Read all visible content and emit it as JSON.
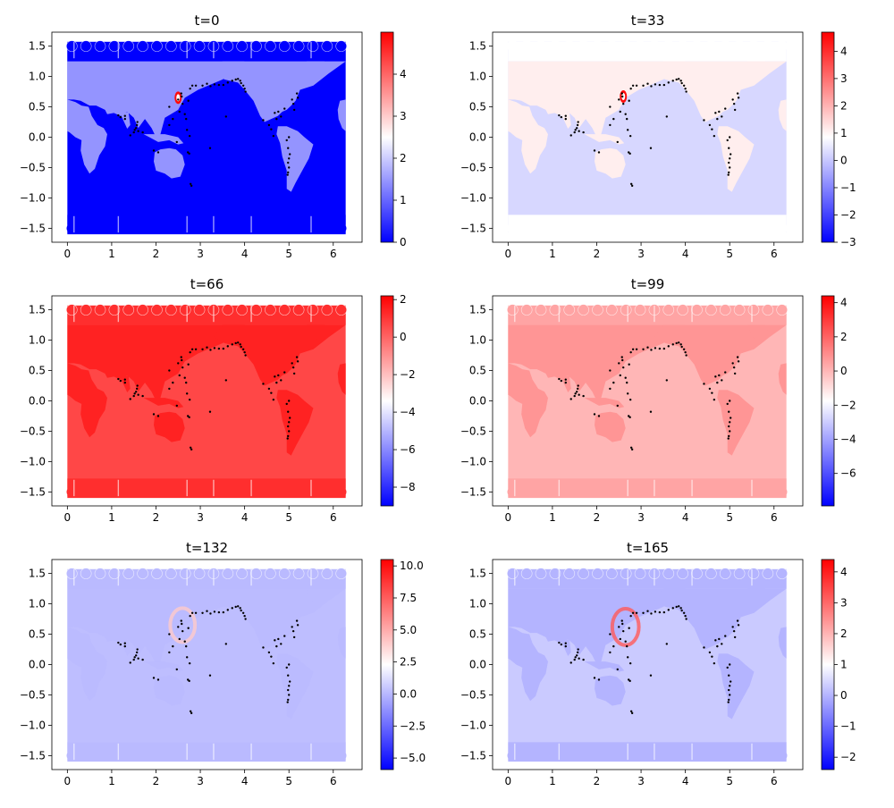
{
  "chart_data": [
    {
      "type": "scatter",
      "title": "t=0",
      "xlabel": "",
      "ylabel": "",
      "x_ticks": [
        "0",
        "1",
        "2",
        "3",
        "4",
        "5",
        "6"
      ],
      "y_ticks": [
        "1.5",
        "1.0",
        "0.5",
        "0.0",
        "−0.5",
        "−1.0",
        "−1.5"
      ],
      "xlim": [
        -0.35,
        6.65
      ],
      "ylim": [
        -1.73,
        1.73
      ],
      "colorbar": {
        "min": 0,
        "max": 5,
        "ticks": [
          "0",
          "1",
          "2",
          "3",
          "4"
        ],
        "cmap": "bwr"
      },
      "field": {
        "ocean": 0.0,
        "land": 1.45,
        "polar": 0.0
      },
      "source": {
        "x": 2.5,
        "y": 0.65,
        "value": 4.9
      },
      "ring": null
    },
    {
      "type": "scatter",
      "title": "t=33",
      "xlabel": "",
      "ylabel": "",
      "x_ticks": [
        "0",
        "1",
        "2",
        "3",
        "4",
        "5",
        "6"
      ],
      "y_ticks": [
        "1.5",
        "1.0",
        "0.5",
        "0.0",
        "−0.5",
        "−1.0",
        "−1.5"
      ],
      "xlim": [
        -0.35,
        6.65
      ],
      "ylim": [
        -1.73,
        1.73
      ],
      "colorbar": {
        "min": -3,
        "max": 4.7,
        "ticks": [
          "−3",
          "−2",
          "−1",
          "0",
          "1",
          "2",
          "3",
          "4"
        ],
        "cmap": "bwr"
      },
      "field": {
        "ocean": 0.25,
        "land": 1.1,
        "polar": 0.85
      },
      "source": {
        "x": 2.6,
        "y": 0.67,
        "value": 4.5
      },
      "ring": null
    },
    {
      "type": "scatter",
      "title": "t=66",
      "xlabel": "",
      "ylabel": "",
      "x_ticks": [
        "0",
        "1",
        "2",
        "3",
        "4",
        "5",
        "6"
      ],
      "y_ticks": [
        "1.5",
        "1.0",
        "0.5",
        "0.0",
        "−0.5",
        "−1.0",
        "−1.5"
      ],
      "xlim": [
        -0.35,
        6.65
      ],
      "ylim": [
        -1.73,
        1.73
      ],
      "colorbar": {
        "min": -9,
        "max": 2.2,
        "ticks": [
          "−8",
          "−6",
          "−4",
          "−2",
          "0",
          "2"
        ],
        "cmap": "bwr"
      },
      "field": {
        "ocean": 0.65,
        "land": 1.45,
        "polar": 1.2
      },
      "source": null,
      "ring": null
    },
    {
      "type": "scatter",
      "title": "t=99",
      "xlabel": "",
      "ylabel": "",
      "x_ticks": [
        "0",
        "1",
        "2",
        "3",
        "4",
        "5",
        "6"
      ],
      "y_ticks": [
        "1.5",
        "1.0",
        "0.5",
        "0.0",
        "−0.5",
        "−1.0",
        "−1.5"
      ],
      "xlim": [
        -0.35,
        6.65
      ],
      "ylim": [
        -1.73,
        1.73
      ],
      "colorbar": {
        "min": -7.9,
        "max": 4.4,
        "ticks": [
          "−6",
          "−4",
          "−2",
          "0",
          "2",
          "4"
        ],
        "cmap": "bwr"
      },
      "field": {
        "ocean": 0.0,
        "land": 0.8,
        "polar": 0.45
      },
      "source": null,
      "ring": null
    },
    {
      "type": "scatter",
      "title": "t=132",
      "xlabel": "",
      "ylabel": "",
      "x_ticks": [
        "0",
        "1",
        "2",
        "3",
        "4",
        "5",
        "6"
      ],
      "y_ticks": [
        "1.5",
        "1.0",
        "0.5",
        "0.0",
        "−0.5",
        "−1.0",
        "−1.5"
      ],
      "xlim": [
        -0.35,
        6.65
      ],
      "ylim": [
        -1.73,
        1.73
      ],
      "colorbar": {
        "min": -5.9,
        "max": 10.5,
        "ticks": [
          "−5.0",
          "−2.5",
          "0.0",
          "2.5",
          "5.0",
          "7.5",
          "10.0"
        ],
        "cmap": "bwr"
      },
      "field": {
        "ocean": 0.2,
        "land": 0.1,
        "polar": 0.08
      },
      "source": null,
      "ring": {
        "x": 2.6,
        "y": 0.65,
        "r": 0.28,
        "value": 4.0
      }
    },
    {
      "type": "scatter",
      "title": "t=165",
      "xlabel": "",
      "ylabel": "",
      "x_ticks": [
        "0",
        "1",
        "2",
        "3",
        "4",
        "5",
        "6"
      ],
      "y_ticks": [
        "1.5",
        "1.0",
        "0.5",
        "0.0",
        "−0.5",
        "−1.0",
        "−1.5"
      ],
      "xlim": [
        -0.35,
        6.65
      ],
      "ylim": [
        -1.73,
        1.73
      ],
      "colorbar": {
        "min": -2.4,
        "max": 4.4,
        "ticks": [
          "−2",
          "−1",
          "0",
          "1",
          "2",
          "3",
          "4"
        ],
        "cmap": "bwr"
      },
      "field": {
        "ocean": 0.3,
        "land": 0.0,
        "polar": 0.0
      },
      "source": null,
      "ring": {
        "x": 2.65,
        "y": 0.62,
        "r": 0.3,
        "value": 3.2
      }
    }
  ],
  "gauge_stations": [
    [
      1.15,
      0.36
    ],
    [
      1.2,
      0.33
    ],
    [
      1.3,
      0.3
    ],
    [
      1.3,
      0.35
    ],
    [
      1.5,
      0.08
    ],
    [
      1.52,
      0.12
    ],
    [
      1.55,
      0.15
    ],
    [
      1.57,
      0.2
    ],
    [
      1.58,
      0.25
    ],
    [
      1.6,
      0.1
    ],
    [
      1.42,
      0.03
    ],
    [
      1.7,
      0.08
    ],
    [
      1.95,
      -0.22
    ],
    [
      2.05,
      -0.25
    ],
    [
      2.3,
      0.2
    ],
    [
      2.3,
      0.5
    ],
    [
      2.38,
      0.3
    ],
    [
      2.47,
      -0.08
    ],
    [
      2.5,
      0.62
    ],
    [
      2.53,
      0.42
    ],
    [
      2.57,
      0.72
    ],
    [
      2.58,
      0.67
    ],
    [
      2.6,
      0.55
    ],
    [
      2.65,
      0.38
    ],
    [
      2.68,
      0.3
    ],
    [
      2.7,
      0.12
    ],
    [
      2.72,
      -0.25
    ],
    [
      2.75,
      -0.27
    ],
    [
      2.76,
      0.02
    ],
    [
      2.73,
      0.6
    ],
    [
      2.77,
      0.8
    ],
    [
      2.78,
      -0.77
    ],
    [
      2.8,
      -0.8
    ],
    [
      2.82,
      0.85
    ],
    [
      2.9,
      0.85
    ],
    [
      3.05,
      0.85
    ],
    [
      3.15,
      0.88
    ],
    [
      3.23,
      0.84
    ],
    [
      3.22,
      -0.18
    ],
    [
      3.32,
      0.87
    ],
    [
      3.42,
      0.86
    ],
    [
      3.52,
      0.86
    ],
    [
      3.62,
      0.9
    ],
    [
      3.72,
      0.93
    ],
    [
      3.8,
      0.95
    ],
    [
      3.85,
      0.96
    ],
    [
      3.9,
      0.93
    ],
    [
      3.92,
      0.89
    ],
    [
      3.97,
      0.85
    ],
    [
      4.0,
      0.8
    ],
    [
      4.02,
      0.75
    ],
    [
      3.58,
      0.34
    ],
    [
      4.42,
      0.28
    ],
    [
      4.55,
      0.2
    ],
    [
      4.6,
      0.13
    ],
    [
      4.65,
      0.02
    ],
    [
      4.68,
      0.4
    ],
    [
      4.72,
      0.3
    ],
    [
      4.76,
      0.42
    ],
    [
      4.82,
      0.34
    ],
    [
      4.9,
      0.47
    ],
    [
      4.95,
      -0.05
    ],
    [
      5.0,
      0.0
    ],
    [
      4.98,
      -0.18
    ],
    [
      5.02,
      -0.28
    ],
    [
      5.0,
      -0.35
    ],
    [
      4.98,
      -0.42
    ],
    [
      5.0,
      -0.5
    ],
    [
      4.98,
      -0.58
    ],
    [
      4.97,
      -0.62
    ],
    [
      5.07,
      0.62
    ],
    [
      5.1,
      0.55
    ],
    [
      5.12,
      0.45
    ],
    [
      5.18,
      0.72
    ],
    [
      5.2,
      0.65
    ]
  ]
}
